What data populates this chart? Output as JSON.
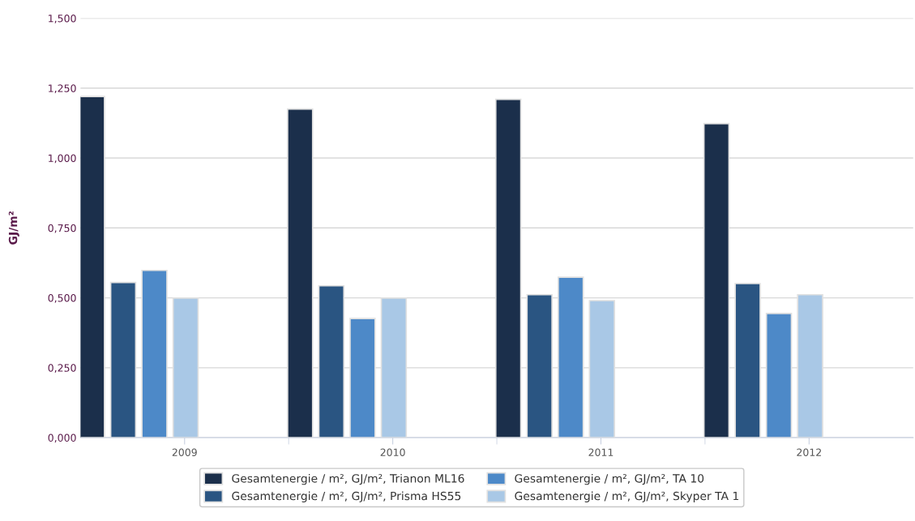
{
  "chart_data": {
    "type": "bar",
    "ylabel": "GJ/m²",
    "categories": [
      "2009",
      "2010",
      "2011",
      "2012"
    ],
    "series": [
      {
        "name": "Gesamtenergie / m², GJ/m², Trianon ML16",
        "color": "#1b2f4b",
        "values": [
          1.22,
          1.175,
          1.21,
          1.123
        ]
      },
      {
        "name": "Gesamtenergie / m², GJ/m², Prisma HS55",
        "color": "#2a5582",
        "values": [
          0.555,
          0.543,
          0.511,
          0.551
        ]
      },
      {
        "name": "Gesamtenergie / m², GJ/m², TA 10",
        "color": "#4d89c8",
        "values": [
          0.598,
          0.426,
          0.574,
          0.444
        ]
      },
      {
        "name": "Gesamtenergie / m², GJ/m², Skyper TA 1",
        "color": "#a9c8e6",
        "values": [
          0.499,
          0.499,
          0.49,
          0.511
        ]
      }
    ],
    "ylim": [
      0,
      1.5
    ],
    "yticks": [
      {
        "value": 0,
        "label": "0,000"
      },
      {
        "value": 0.25,
        "label": "0,250"
      },
      {
        "value": 0.5,
        "label": "0,500"
      },
      {
        "value": 0.75,
        "label": "0,750"
      },
      {
        "value": 1.0,
        "label": "1,000"
      },
      {
        "value": 1.25,
        "label": "1,250"
      },
      {
        "value": 1.5,
        "label": "1,500"
      }
    ],
    "grid": "y",
    "legend": "bottom"
  }
}
